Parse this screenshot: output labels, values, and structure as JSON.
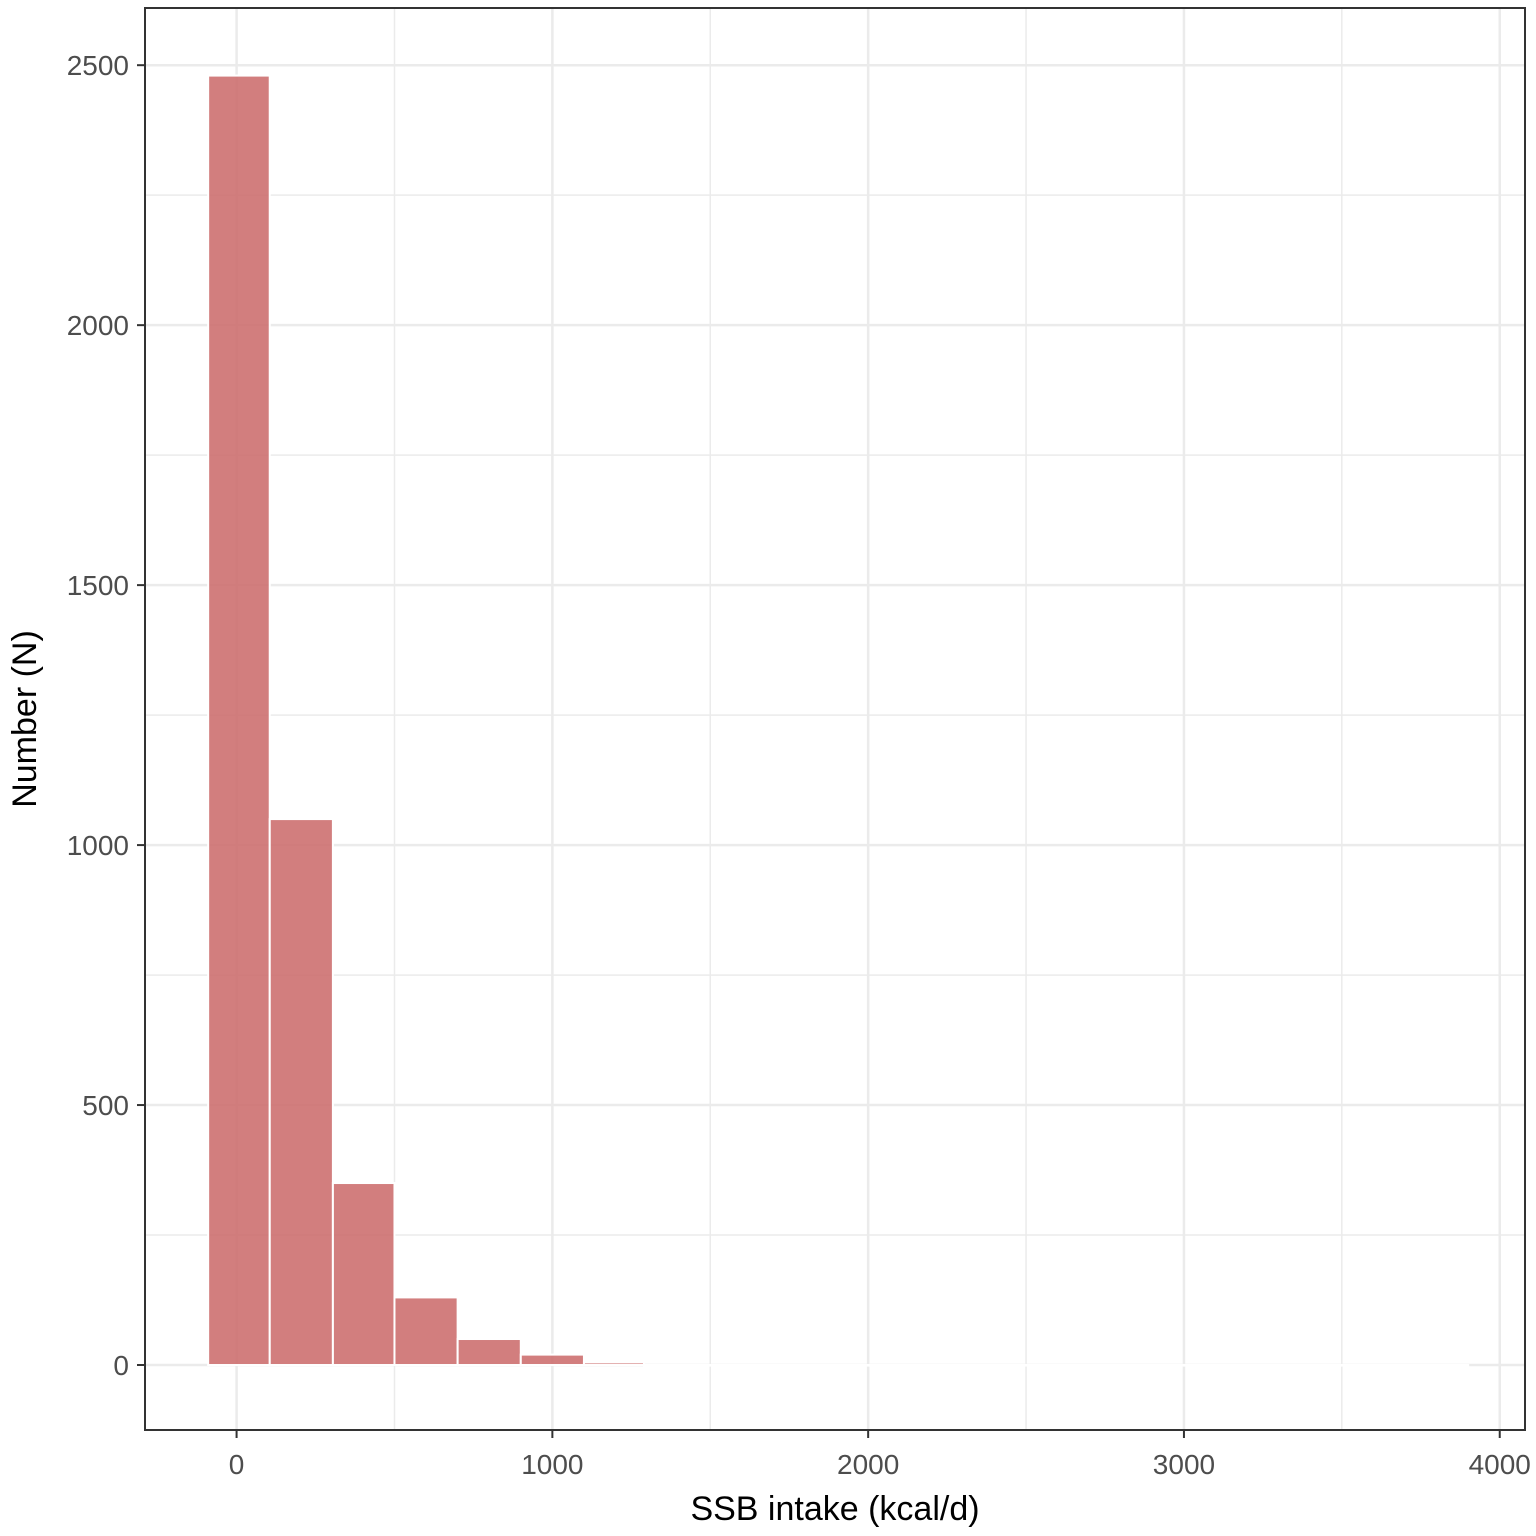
{
  "chart_data": {
    "type": "bar",
    "xlabel": "SSB intake (kcal/d)",
    "ylabel": "Number (N)",
    "title": "",
    "xlim": [
      -290,
      4080
    ],
    "ylim": [
      -125,
      2610
    ],
    "x_ticks": [
      0,
      1000,
      2000,
      3000,
      4000
    ],
    "x_tick_labels": [
      "0",
      "1000",
      "2000",
      "3000",
      "4000"
    ],
    "y_ticks": [
      0,
      500,
      1000,
      1500,
      2000,
      2500
    ],
    "y_tick_labels": [
      "0",
      "500",
      "1000",
      "1500",
      "2000",
      "2500"
    ],
    "grid": true,
    "bins": [
      {
        "x_start": -90,
        "x_end": 105,
        "count": 2480
      },
      {
        "x_start": 105,
        "x_end": 305,
        "count": 1050
      },
      {
        "x_start": 305,
        "x_end": 500,
        "count": 350
      },
      {
        "x_start": 500,
        "x_end": 700,
        "count": 130
      },
      {
        "x_start": 700,
        "x_end": 900,
        "count": 50
      },
      {
        "x_start": 900,
        "x_end": 1100,
        "count": 20
      },
      {
        "x_start": 1100,
        "x_end": 1290,
        "count": 5
      },
      {
        "x_start": 1290,
        "x_end": 3900,
        "count": 0
      }
    ],
    "bar_color": "#cd7070",
    "bar_outline": "#ffffff",
    "grid_color": "#ebebeb"
  }
}
